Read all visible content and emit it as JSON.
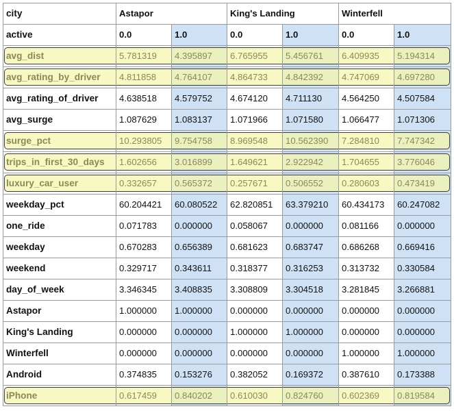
{
  "columns": {
    "label_header": "city",
    "groups": [
      "Astapor",
      "King's Landing",
      "Winterfell"
    ],
    "active_label": "active",
    "active_values": [
      "0.0",
      "1.0",
      "0.0",
      "1.0",
      "0.0",
      "1.0"
    ]
  },
  "rows": [
    {
      "label": "avg_dist",
      "highlight": true,
      "values": [
        "5.781319",
        "4.395897",
        "6.765955",
        "5.456761",
        "6.409935",
        "5.194314"
      ]
    },
    {
      "label": "avg_rating_by_driver",
      "highlight": true,
      "values": [
        "4.811858",
        "4.764107",
        "4.864733",
        "4.842392",
        "4.747069",
        "4.697280"
      ]
    },
    {
      "label": "avg_rating_of_driver",
      "highlight": false,
      "values": [
        "4.638518",
        "4.579752",
        "4.674120",
        "4.711130",
        "4.564250",
        "4.507584"
      ]
    },
    {
      "label": "avg_surge",
      "highlight": false,
      "values": [
        "1.087629",
        "1.083137",
        "1.071966",
        "1.071580",
        "1.066477",
        "1.071306"
      ]
    },
    {
      "label": "surge_pct",
      "highlight": true,
      "values": [
        "10.293805",
        "9.754758",
        "8.969548",
        "10.562390",
        "7.284810",
        "7.747342"
      ]
    },
    {
      "label": "trips_in_first_30_days",
      "highlight": true,
      "values": [
        "1.602656",
        "3.016899",
        "1.649621",
        "2.922942",
        "1.704655",
        "3.776046"
      ]
    },
    {
      "label": "luxury_car_user",
      "highlight": true,
      "values": [
        "0.332657",
        "0.565372",
        "0.257671",
        "0.506552",
        "0.280603",
        "0.473419"
      ]
    },
    {
      "label": "weekday_pct",
      "highlight": false,
      "values": [
        "60.204421",
        "60.080522",
        "62.820851",
        "63.379210",
        "60.434173",
        "60.247082"
      ]
    },
    {
      "label": "one_ride",
      "highlight": false,
      "values": [
        "0.071783",
        "0.000000",
        "0.058067",
        "0.000000",
        "0.081166",
        "0.000000"
      ]
    },
    {
      "label": "weekday",
      "highlight": false,
      "values": [
        "0.670283",
        "0.656389",
        "0.681623",
        "0.683747",
        "0.686268",
        "0.669416"
      ]
    },
    {
      "label": "weekend",
      "highlight": false,
      "values": [
        "0.329717",
        "0.343611",
        "0.318377",
        "0.316253",
        "0.313732",
        "0.330584"
      ]
    },
    {
      "label": "day_of_week",
      "highlight": false,
      "values": [
        "3.346345",
        "3.408835",
        "3.308809",
        "3.304518",
        "3.281845",
        "3.266881"
      ]
    },
    {
      "label": "Astapor",
      "highlight": false,
      "values": [
        "1.000000",
        "1.000000",
        "0.000000",
        "0.000000",
        "0.000000",
        "0.000000"
      ]
    },
    {
      "label": "King's Landing",
      "highlight": false,
      "values": [
        "0.000000",
        "0.000000",
        "1.000000",
        "1.000000",
        "0.000000",
        "0.000000"
      ]
    },
    {
      "label": "Winterfell",
      "highlight": false,
      "values": [
        "0.000000",
        "0.000000",
        "0.000000",
        "0.000000",
        "1.000000",
        "1.000000"
      ]
    },
    {
      "label": "Android",
      "highlight": false,
      "values": [
        "0.374835",
        "0.153276",
        "0.382052",
        "0.169372",
        "0.387610",
        "0.173388"
      ]
    },
    {
      "label": "iPhone",
      "highlight": true,
      "values": [
        "0.617459",
        "0.840202",
        "0.610030",
        "0.824760",
        "0.602369",
        "0.819584"
      ]
    }
  ],
  "colors": {
    "active_column_bg": "#cfe2f5",
    "highlight_band_bg": "#f5f5aa",
    "highlight_band_border": "#3b3b3b",
    "highlight_text": "#8a8a56",
    "grid_line": "#9a9a9a"
  }
}
